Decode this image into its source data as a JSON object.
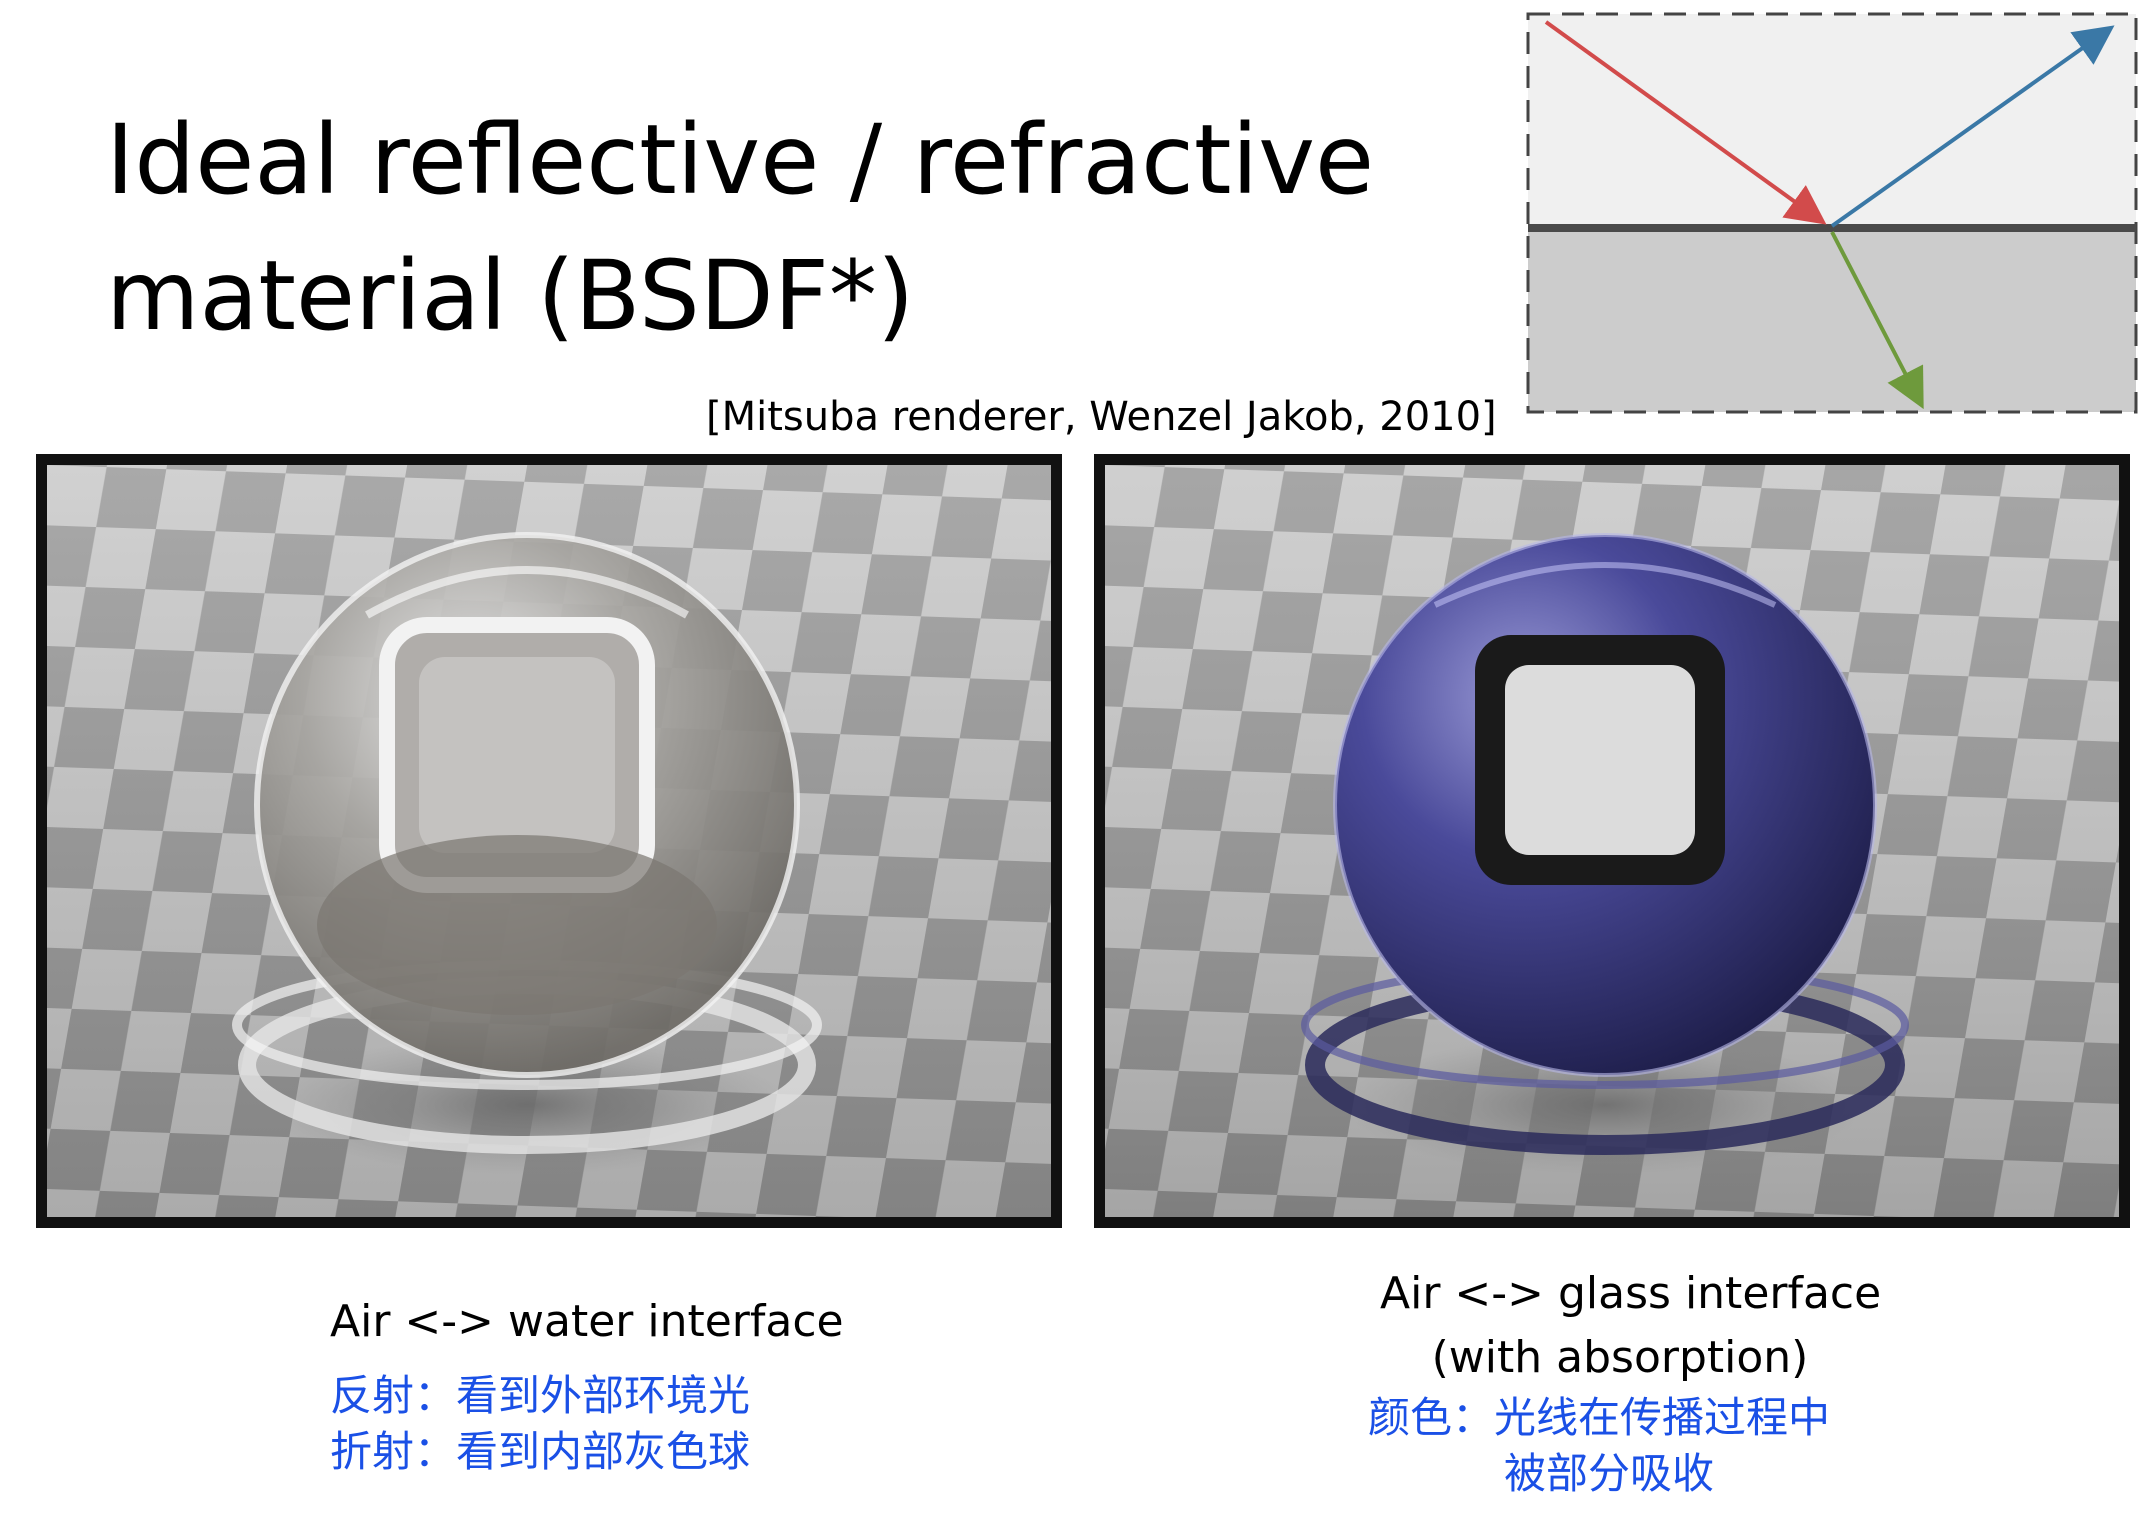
{
  "slide": {
    "title_line1": "Ideal reflective / refractive",
    "title_line2": "material (BSDF*)",
    "credit": "[Mitsuba renderer, Wenzel Jakob, 2010]"
  },
  "diagram": {
    "incident_color": "#d24b4b",
    "reflected_color": "#3a78a6",
    "refracted_color": "#6e9a3c",
    "upper_medium_color": "#f0f0f0",
    "lower_medium_color": "#cccccc",
    "interface_color": "#4a4a4a"
  },
  "left_panel": {
    "caption": "Air <-> water interface",
    "note_line1": "反射：看到外部环境光",
    "note_line2": "折射：看到内部灰色球"
  },
  "right_panel": {
    "caption_line1": "Air <-> glass interface",
    "caption_line2": "(with absorption)",
    "note_line1": "颜色：光线在传播过程中",
    "note_line2": "被部分吸收"
  },
  "colors": {
    "note_text": "#1a50e6",
    "glass_tint": "#3a3a8c"
  }
}
